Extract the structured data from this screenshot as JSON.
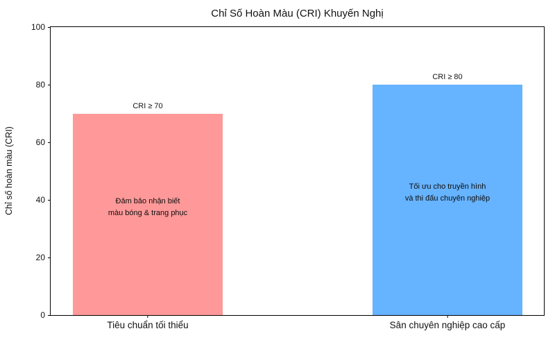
{
  "chart_data": {
    "type": "bar",
    "title": "Chỉ Số Hoàn Màu (CRI) Khuyến Nghị",
    "xlabel": "",
    "ylabel": "Chỉ số hoàn màu (CRI)",
    "categories": [
      "Tiêu chuẩn tối thiểu",
      "Sân chuyên nghiệp cao cấp"
    ],
    "values": [
      70,
      80
    ],
    "bar_colors": [
      "#ff9999",
      "#66b3ff"
    ],
    "annotations": [
      "CRI ≥ 70",
      "CRI ≥ 80"
    ],
    "inner_labels": [
      [
        "Đảm bảo nhận biết",
        "màu bóng & trang phục"
      ],
      [
        "Tối ưu cho truyền hình",
        "và thi đấu chuyên nghiệp"
      ]
    ],
    "ylim": [
      0,
      100
    ],
    "yticks": [
      0,
      20,
      40,
      60,
      80,
      100
    ],
    "grid": false,
    "legend": null
  }
}
